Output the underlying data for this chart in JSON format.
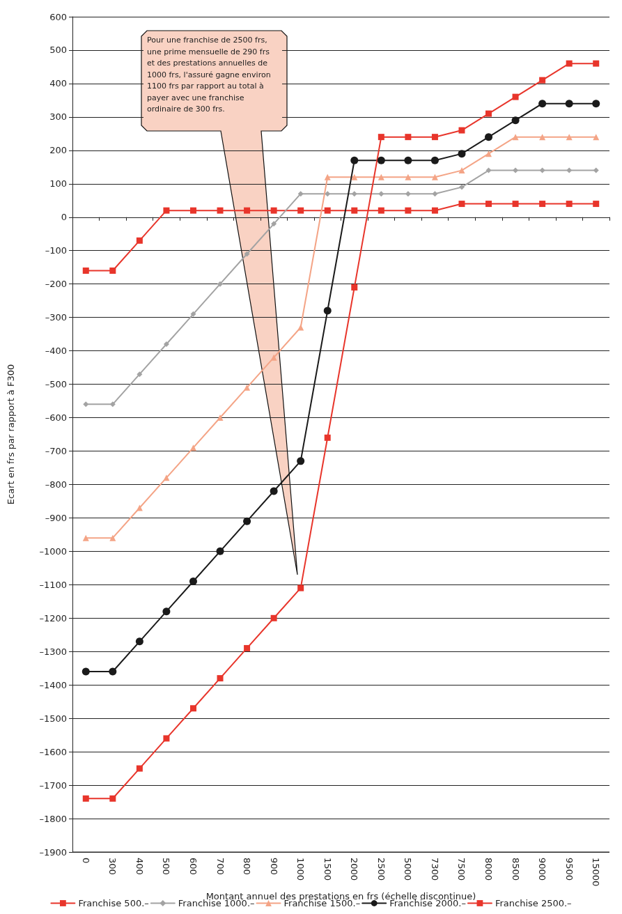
{
  "chart_data": {
    "type": "line",
    "xlabel": "Montant annuel des prestations en frs (échelle discontinue)",
    "ylabel": "Ecart en frs par rapport à F300",
    "categories": [
      "0",
      "300",
      "400",
      "500",
      "600",
      "700",
      "800",
      "900",
      "1000",
      "1500",
      "2000",
      "2500",
      "5000",
      "7300",
      "7500",
      "8000",
      "8500",
      "9000",
      "9500",
      "15000"
    ],
    "series": [
      {
        "name": "Franchise 500.–",
        "color": "#e8352b",
        "marker": "square",
        "values": [
          -160,
          -160,
          -70,
          20,
          20,
          20,
          20,
          20,
          20,
          20,
          20,
          20,
          20,
          20,
          40,
          40,
          40,
          40,
          40,
          40
        ]
      },
      {
        "name": "Franchise 1000.–",
        "color": "#a3a3a3",
        "marker": "diamond",
        "values": [
          -560,
          -560,
          -470,
          -380,
          -290,
          -200,
          -110,
          -20,
          70,
          70,
          70,
          70,
          70,
          70,
          90,
          140,
          140,
          140,
          140,
          140
        ]
      },
      {
        "name": "Franchise 1500.–",
        "color": "#f4a486",
        "marker": "triangle",
        "values": [
          -960,
          -960,
          -870,
          -780,
          -690,
          -600,
          -510,
          -420,
          -330,
          120,
          120,
          120,
          120,
          120,
          140,
          190,
          240,
          240,
          240,
          240
        ]
      },
      {
        "name": "Franchise 2000.–",
        "color": "#1a1a1a",
        "marker": "circle",
        "values": [
          -1360,
          -1360,
          -1270,
          -1180,
          -1090,
          -1000,
          -910,
          -820,
          -730,
          -280,
          170,
          170,
          170,
          170,
          190,
          240,
          290,
          340,
          340,
          340
        ]
      },
      {
        "name": "Franchise 2500.–",
        "color": "#e8352b",
        "marker": "square",
        "values": [
          -1740,
          -1740,
          -1650,
          -1560,
          -1470,
          -1380,
          -1290,
          -1200,
          -1110,
          -660,
          -210,
          240,
          240,
          240,
          260,
          310,
          360,
          410,
          460,
          460
        ]
      }
    ],
    "ylim": [
      -1900,
      600
    ],
    "yticks": [
      {
        "value": -1900,
        "label": "–1900"
      },
      {
        "value": -1800,
        "label": "–1800"
      },
      {
        "value": -1700,
        "label": "–1700"
      },
      {
        "value": -1600,
        "label": "–1600"
      },
      {
        "value": -1500,
        "label": "–1500"
      },
      {
        "value": -1400,
        "label": "–1400"
      },
      {
        "value": -1300,
        "label": "–1300"
      },
      {
        "value": -1200,
        "label": "–1200"
      },
      {
        "value": -1100,
        "label": "–1100"
      },
      {
        "value": -1000,
        "label": "–1000"
      },
      {
        "value": -900,
        "label": "–900"
      },
      {
        "value": -800,
        "label": "–800"
      },
      {
        "value": -700,
        "label": "–700"
      },
      {
        "value": -600,
        "label": "–600"
      },
      {
        "value": -500,
        "label": "–500"
      },
      {
        "value": -400,
        "label": "–400"
      },
      {
        "value": -300,
        "label": "–300"
      },
      {
        "value": -200,
        "label": "–200"
      },
      {
        "value": -100,
        "label": "–100"
      },
      0,
      100,
      200,
      300,
      400,
      500,
      600
    ],
    "grid": "y",
    "legend": "bottom",
    "line_style": "solid",
    "annotations": [
      "Pour une franchise de 2500 frs, une prime mensuelle de 290 frs et des prestations annuelles de 1000 frs, l'assuré gagne environ 1100 frs par rapport au total à payer avec une franchise ordinaire de 300 frs."
    ]
  }
}
